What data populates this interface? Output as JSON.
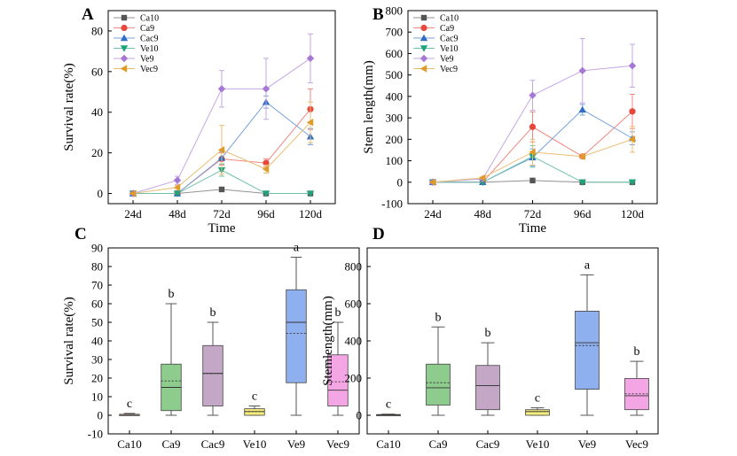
{
  "chart_data": [
    {
      "panel": "A",
      "type": "line",
      "categories": [
        "24d",
        "48d",
        "72d",
        "96d",
        "120d"
      ],
      "xlabel": "Time",
      "ylabel": "Survival rate(%)",
      "ylim": [
        -5,
        90
      ],
      "yticks": [
        0,
        20,
        40,
        60,
        80
      ],
      "legend_position": "top-left",
      "series": [
        {
          "name": "Ca10",
          "color": "#555555",
          "marker": "square",
          "values": [
            0,
            0,
            2,
            0,
            0
          ],
          "err": [
            0,
            0,
            0.5,
            0,
            0
          ]
        },
        {
          "name": "Ca9",
          "color": "#e8463b",
          "marker": "circle",
          "values": [
            0,
            0,
            17,
            15,
            41.5
          ],
          "err": [
            0,
            0,
            3,
            2,
            10
          ]
        },
        {
          "name": "Cac9",
          "color": "#2f6ec7",
          "marker": "triangle-up",
          "values": [
            0,
            0,
            17.5,
            45,
            28
          ],
          "err": [
            0,
            0,
            3,
            3,
            4
          ]
        },
        {
          "name": "Ve10",
          "color": "#1fa37a",
          "marker": "triangle-down",
          "values": [
            0,
            0,
            11.5,
            0,
            0
          ],
          "err": [
            0,
            0,
            3,
            0,
            0
          ]
        },
        {
          "name": "Ve9",
          "color": "#a678d6",
          "marker": "diamond",
          "values": [
            0,
            6.5,
            51.5,
            51.5,
            66.5
          ],
          "err": [
            0,
            2,
            9,
            15,
            12
          ]
        },
        {
          "name": "Vec9",
          "color": "#e09a27",
          "marker": "triangle-left",
          "values": [
            0,
            3,
            21.5,
            12,
            35
          ],
          "err": [
            0,
            1,
            12,
            2,
            10
          ]
        }
      ]
    },
    {
      "panel": "B",
      "type": "line",
      "categories": [
        "24d",
        "48d",
        "72d",
        "96d",
        "120d"
      ],
      "xlabel": "Time",
      "ylabel": "Stem length(mm)",
      "ylim": [
        -100,
        800
      ],
      "yticks": [
        -100,
        0,
        100,
        200,
        300,
        400,
        500,
        600,
        700,
        800
      ],
      "legend_position": "top-left",
      "series": [
        {
          "name": "Ca10",
          "color": "#555555",
          "marker": "square",
          "values": [
            0,
            0,
            8,
            0,
            0
          ],
          "err": [
            0,
            0,
            2,
            0,
            0
          ]
        },
        {
          "name": "Ca9",
          "color": "#e8463b",
          "marker": "circle",
          "values": [
            0,
            0,
            258,
            120,
            330
          ],
          "err": [
            0,
            0,
            70,
            10,
            80
          ]
        },
        {
          "name": "Cac9",
          "color": "#2f6ec7",
          "marker": "triangle-up",
          "values": [
            0,
            0,
            115,
            338,
            205
          ],
          "err": [
            0,
            0,
            40,
            25,
            30
          ]
        },
        {
          "name": "Ve10",
          "color": "#1fa37a",
          "marker": "triangle-down",
          "values": [
            0,
            0,
            120,
            0,
            0
          ],
          "err": [
            0,
            0,
            50,
            0,
            0
          ]
        },
        {
          "name": "Ve9",
          "color": "#a678d6",
          "marker": "diamond",
          "values": [
            0,
            15,
            405,
            520,
            543
          ],
          "err": [
            0,
            5,
            70,
            150,
            100
          ]
        },
        {
          "name": "Vec9",
          "color": "#e09a27",
          "marker": "triangle-left",
          "values": [
            0,
            20,
            140,
            120,
            200
          ],
          "err": [
            0,
            5,
            60,
            10,
            60
          ]
        }
      ]
    },
    {
      "panel": "C",
      "type": "box",
      "categories": [
        "Ca10",
        "Ca9",
        "Cac9",
        "Ve10",
        "Ve9",
        "Vec9"
      ],
      "ylabel": "Survival rate(%)",
      "ylim": [
        -10,
        90
      ],
      "yticks": [
        -10,
        0,
        10,
        20,
        30,
        40,
        50,
        60,
        70,
        80,
        90
      ],
      "boxes": [
        {
          "name": "Ca10",
          "color": "#c9a49a",
          "min": 0,
          "q1": 0,
          "median": 0.5,
          "mean": 0.5,
          "q3": 0.5,
          "max": 1,
          "label": "c"
        },
        {
          "name": "Ca9",
          "color": "#8dcc8d",
          "min": 0,
          "q1": 2.5,
          "median": 15,
          "mean": 18.5,
          "q3": 27.5,
          "max": 60,
          "label": "b"
        },
        {
          "name": "Cac9",
          "color": "#c4a6c6",
          "min": 0,
          "q1": 5,
          "median": 22.5,
          "mean": 22.5,
          "q3": 37.5,
          "max": 50,
          "label": "b"
        },
        {
          "name": "Ve10",
          "color": "#f4ec7c",
          "min": 0,
          "q1": 0,
          "median": 2,
          "mean": 2,
          "q3": 3.5,
          "max": 5,
          "label": "c"
        },
        {
          "name": "Ve9",
          "color": "#8eb0ee",
          "min": 0,
          "q1": 17.5,
          "median": 50,
          "mean": 44,
          "q3": 67.5,
          "max": 85,
          "label": "a"
        },
        {
          "name": "Vec9",
          "color": "#f4a6e4",
          "min": 0,
          "q1": 5,
          "median": 13.5,
          "mean": 18,
          "q3": 32.5,
          "max": 50,
          "label": "b"
        }
      ]
    },
    {
      "panel": "D",
      "type": "box",
      "categories": [
        "Ca10",
        "Ca9",
        "Cac9",
        "Ve10",
        "Ve9",
        "Vec9"
      ],
      "ylabel": "Stemlength(mm)",
      "ylim": [
        -100,
        900
      ],
      "yticks": [
        0,
        200,
        400,
        600,
        800
      ],
      "boxes": [
        {
          "name": "Ca10",
          "color": "#c9a49a",
          "min": 0,
          "q1": 0,
          "median": 2,
          "mean": 2,
          "q3": 4,
          "max": 6,
          "label": "c"
        },
        {
          "name": "Ca9",
          "color": "#8dcc8d",
          "min": 0,
          "q1": 55,
          "median": 148,
          "mean": 175,
          "q3": 275,
          "max": 475,
          "label": "b"
        },
        {
          "name": "Cac9",
          "color": "#c4a6c6",
          "min": 0,
          "q1": 30,
          "median": 160,
          "mean": 160,
          "q3": 268,
          "max": 390,
          "label": "b"
        },
        {
          "name": "Ve10",
          "color": "#f4ec7c",
          "min": 0,
          "q1": 0,
          "median": 20,
          "mean": 20,
          "q3": 30,
          "max": 40,
          "label": "c"
        },
        {
          "name": "Ve9",
          "color": "#8eb0ee",
          "min": 0,
          "q1": 140,
          "median": 390,
          "mean": 375,
          "q3": 560,
          "max": 755,
          "label": "a"
        },
        {
          "name": "Vec9",
          "color": "#f4a6e4",
          "min": 0,
          "q1": 30,
          "median": 105,
          "mean": 115,
          "q3": 198,
          "max": 290,
          "label": "b"
        }
      ]
    }
  ]
}
